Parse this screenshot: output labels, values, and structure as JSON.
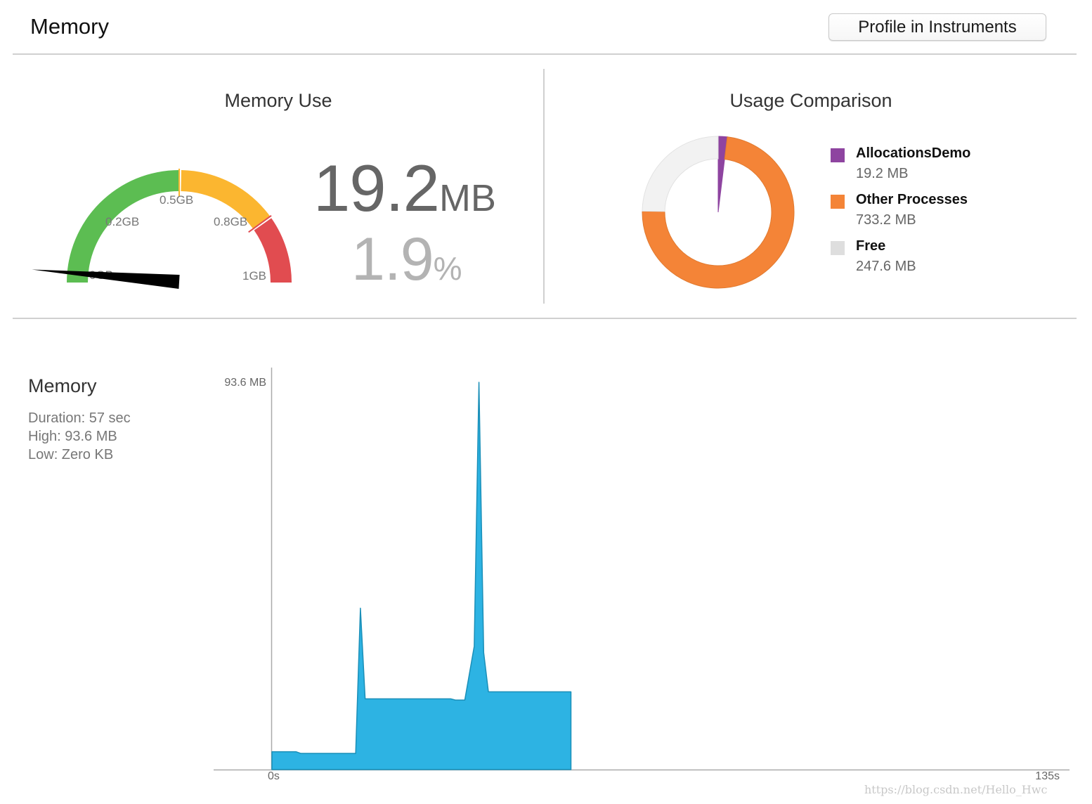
{
  "header": {
    "title": "Memory",
    "profile_button_label": "Profile in Instruments"
  },
  "memory_use": {
    "title": "Memory Use",
    "gauge": {
      "tick_labels": [
        "0GB",
        "0.2GB",
        "0.5GB",
        "0.8GB",
        "1GB"
      ],
      "segments": [
        {
          "name": "low",
          "color": "#5cbd52"
        },
        {
          "name": "medium",
          "color": "#fbb630"
        },
        {
          "name": "high",
          "color": "#e14c50"
        }
      ],
      "needle_value_gb": 0.019
    },
    "value": "19.2",
    "value_unit": "MB",
    "percent": "1.9",
    "percent_unit": "%"
  },
  "usage_comparison": {
    "title": "Usage Comparison",
    "items": [
      {
        "name": "AllocationsDemo",
        "value": "19.2 MB",
        "mb": 19.2,
        "color": "#8e44a0"
      },
      {
        "name": "Other Processes",
        "value": "733.2 MB",
        "mb": 733.2,
        "color": "#f48437"
      },
      {
        "name": "Free",
        "value": "247.6 MB",
        "mb": 247.6,
        "color": "#dedede"
      }
    ]
  },
  "memory_graph": {
    "title": "Memory",
    "stats": [
      "Duration: 57 sec",
      "High: 93.6 MB",
      "Low: Zero KB"
    ],
    "y_max_label": "93.6 MB",
    "x_start_label": "0s",
    "x_end_label": "135s",
    "fill_color": "#2db3e3",
    "stroke_color": "#1a8fb8",
    "chart_data": {
      "type": "area",
      "xlabel": "",
      "ylabel": "",
      "xlim": [
        0,
        135
      ],
      "ylim": [
        0,
        93.6
      ],
      "x": [
        0,
        4.1,
        4.9,
        14.2,
        15.0,
        15.8,
        16.6,
        30.3,
        31.1,
        32.7,
        34.3,
        35.1,
        35.9,
        36.7,
        50.7,
        50.7
      ],
      "y": [
        4.3,
        4.3,
        3.9,
        3.9,
        39.0,
        17.1,
        17.1,
        17.1,
        16.8,
        16.8,
        29.8,
        93.6,
        28.3,
        18.8,
        18.8,
        0
      ]
    }
  },
  "watermark": "https://blog.csdn.net/Hello_Hwc"
}
